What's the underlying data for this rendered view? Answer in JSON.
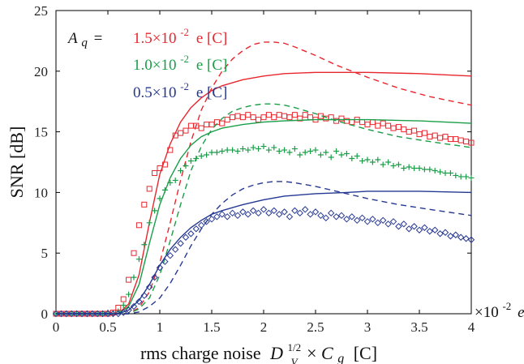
{
  "chart_data": {
    "type": "line",
    "xlabel": "rms charge noise",
    "xlabel_sym": "D",
    "xlabel_sub": "V",
    "xlabel_sup": "1/2",
    "xlabel_times": "×",
    "xlabel_c": "C",
    "xlabel_g": "g",
    "xlabel_unit": "[C]",
    "ylabel": "SNR [dB]",
    "x_unit_prefix": "×10",
    "x_unit_exp": "-2",
    "x_unit_suffix": "e",
    "xlim": [
      0,
      4
    ],
    "ylim": [
      0,
      25
    ],
    "xticks": [
      "0",
      "0.5",
      "1",
      "1.5",
      "2",
      "2.5",
      "3",
      "3.5",
      "4"
    ],
    "yticks": [
      "0",
      "5",
      "10",
      "15",
      "20",
      "25"
    ],
    "legend": {
      "prefix": "A",
      "prefix_sub": "q",
      "equals": "=",
      "entries": [
        {
          "value": "1.5×10",
          "exp": "-2",
          "unit": "e [C]",
          "color": "#e8262d"
        },
        {
          "value": "1.0×10",
          "exp": "-2",
          "unit": "e [C]",
          "color": "#1a9e48"
        },
        {
          "value": "0.5×10",
          "exp": "-2",
          "unit": "e [C]",
          "color": "#253892"
        }
      ]
    },
    "series": [
      {
        "color": "#e8262d",
        "marker": "square",
        "solid": {
          "x": [
            0,
            0.6,
            0.7,
            0.8,
            0.9,
            1.0,
            1.1,
            1.2,
            1.3,
            1.4,
            1.5,
            1.6,
            1.8,
            2.0,
            2.2,
            2.5,
            2.8,
            3.0,
            3.5,
            4.0
          ],
          "y": [
            0,
            0,
            0.8,
            3.2,
            7.5,
            11.5,
            14.0,
            15.8,
            17.0,
            17.8,
            18.4,
            18.8,
            19.3,
            19.6,
            19.8,
            19.9,
            19.9,
            19.9,
            19.8,
            19.6
          ]
        },
        "dashed": {
          "x": [
            0,
            0.7,
            0.8,
            0.9,
            1.0,
            1.1,
            1.2,
            1.3,
            1.4,
            1.5,
            1.6,
            1.7,
            1.8,
            1.9,
            2.0,
            2.1,
            2.2,
            2.3,
            2.5,
            2.7,
            3.0,
            3.3,
            3.6,
            4.0
          ],
          "y": [
            0,
            0,
            0.5,
            1.8,
            4.2,
            7.5,
            11.0,
            14.2,
            16.8,
            18.6,
            20.0,
            21.0,
            21.7,
            22.2,
            22.4,
            22.4,
            22.3,
            22.0,
            21.3,
            20.5,
            19.5,
            18.6,
            17.9,
            17.2
          ]
        },
        "markers": {
          "x": [
            0,
            0.05,
            0.1,
            0.15,
            0.2,
            0.25,
            0.3,
            0.35,
            0.4,
            0.45,
            0.5,
            0.55,
            0.6,
            0.65,
            0.7,
            0.75,
            0.8,
            0.85,
            0.9,
            0.95,
            1.0,
            1.05,
            1.1,
            1.15,
            1.2,
            1.25,
            1.3,
            1.35,
            1.4,
            1.45,
            1.5,
            1.55,
            1.6,
            1.65,
            1.7,
            1.75,
            1.8,
            1.85,
            1.9,
            1.95,
            2.0,
            2.05,
            2.1,
            2.15,
            2.2,
            2.25,
            2.3,
            2.35,
            2.4,
            2.45,
            2.5,
            2.55,
            2.6,
            2.65,
            2.7,
            2.75,
            2.8,
            2.85,
            2.9,
            2.95,
            3.0,
            3.05,
            3.1,
            3.15,
            3.2,
            3.25,
            3.3,
            3.35,
            3.4,
            3.45,
            3.5,
            3.55,
            3.6,
            3.65,
            3.7,
            3.75,
            3.8,
            3.85,
            3.9,
            3.95,
            4.0
          ],
          "y": [
            0,
            0,
            0,
            0,
            0,
            0,
            0,
            0,
            0,
            0,
            0,
            0.1,
            0.5,
            1.2,
            2.8,
            5.0,
            7.3,
            9.0,
            10.3,
            11.6,
            12.0,
            12.3,
            13.5,
            14.7,
            14.9,
            15.1,
            15.5,
            15.5,
            15.3,
            15.6,
            15.6,
            15.8,
            15.7,
            16.0,
            16.2,
            16.3,
            16.2,
            16.4,
            16.2,
            16.0,
            16.2,
            16.4,
            16.2,
            16.4,
            16.3,
            16.2,
            16.4,
            16.1,
            16.4,
            16.2,
            16.0,
            16.3,
            16.1,
            16.2,
            15.9,
            16.1,
            15.9,
            15.8,
            16.0,
            15.8,
            15.6,
            15.8,
            15.5,
            15.7,
            15.5,
            15.3,
            15.4,
            15.2,
            15.0,
            15.1,
            14.8,
            14.9,
            14.6,
            14.7,
            14.5,
            14.6,
            14.4,
            14.4,
            14.3,
            14.2,
            14.1
          ]
        }
      },
      {
        "color": "#1a9e48",
        "marker": "plus",
        "solid": {
          "x": [
            0,
            0.6,
            0.7,
            0.8,
            0.9,
            1.0,
            1.1,
            1.2,
            1.3,
            1.4,
            1.5,
            1.6,
            1.8,
            2.0,
            2.2,
            2.5,
            2.8,
            3.0,
            3.5,
            4.0
          ],
          "y": [
            0,
            0,
            0.6,
            2.4,
            5.8,
            9.0,
            11.2,
            12.8,
            13.9,
            14.6,
            15.0,
            15.3,
            15.6,
            15.8,
            15.9,
            16.0,
            16.0,
            16.0,
            15.9,
            15.7
          ]
        },
        "dashed": {
          "x": [
            0,
            0.7,
            0.8,
            0.9,
            1.0,
            1.1,
            1.2,
            1.3,
            1.4,
            1.5,
            1.6,
            1.7,
            1.8,
            1.9,
            2.0,
            2.1,
            2.2,
            2.3,
            2.5,
            2.7,
            3.0,
            3.3,
            3.6,
            4.0
          ],
          "y": [
            0,
            0,
            0.4,
            1.3,
            3.2,
            6.0,
            9.0,
            11.8,
            13.8,
            15.2,
            16.1,
            16.7,
            17.0,
            17.2,
            17.3,
            17.3,
            17.2,
            17.0,
            16.5,
            15.9,
            15.2,
            14.6,
            14.2,
            13.7
          ]
        },
        "markers": {
          "x": [
            0,
            0.05,
            0.1,
            0.15,
            0.2,
            0.25,
            0.3,
            0.35,
            0.4,
            0.45,
            0.5,
            0.55,
            0.6,
            0.65,
            0.7,
            0.75,
            0.8,
            0.85,
            0.9,
            0.95,
            1.0,
            1.05,
            1.1,
            1.15,
            1.2,
            1.25,
            1.3,
            1.35,
            1.4,
            1.45,
            1.5,
            1.55,
            1.6,
            1.65,
            1.7,
            1.75,
            1.8,
            1.85,
            1.9,
            1.95,
            2.0,
            2.05,
            2.1,
            2.15,
            2.2,
            2.25,
            2.3,
            2.35,
            2.4,
            2.45,
            2.5,
            2.55,
            2.6,
            2.65,
            2.7,
            2.75,
            2.8,
            2.85,
            2.9,
            2.95,
            3.0,
            3.05,
            3.1,
            3.15,
            3.2,
            3.25,
            3.3,
            3.35,
            3.4,
            3.45,
            3.5,
            3.55,
            3.6,
            3.65,
            3.7,
            3.75,
            3.8,
            3.85,
            3.9,
            3.95,
            4.0
          ],
          "y": [
            0,
            0,
            0,
            0,
            0,
            0,
            0,
            0,
            0,
            0,
            0,
            0,
            0.2,
            0.7,
            1.6,
            3.0,
            4.5,
            5.7,
            7.5,
            8.5,
            9.5,
            10.2,
            10.8,
            11.0,
            11.8,
            12.2,
            12.6,
            12.8,
            13.0,
            13.1,
            13.3,
            13.3,
            13.4,
            13.5,
            13.5,
            13.4,
            13.6,
            13.5,
            13.7,
            13.6,
            13.8,
            13.5,
            13.7,
            13.4,
            13.5,
            13.3,
            13.6,
            13.1,
            13.3,
            13.4,
            13.5,
            13.1,
            13.3,
            12.9,
            13.4,
            13.1,
            13.2,
            12.8,
            13.0,
            12.6,
            12.7,
            12.5,
            12.7,
            12.3,
            12.5,
            12.2,
            12.3,
            12.0,
            12.1,
            12.0,
            12.0,
            11.9,
            11.9,
            11.8,
            11.7,
            11.6,
            11.6,
            11.4,
            11.3,
            11.3,
            11.2
          ]
        }
      },
      {
        "color": "#253892",
        "marker": "diamond",
        "solid": {
          "x": [
            0,
            0.6,
            0.7,
            0.8,
            0.9,
            1.0,
            1.1,
            1.2,
            1.3,
            1.4,
            1.5,
            1.6,
            1.8,
            2.0,
            2.2,
            2.5,
            2.8,
            3.0,
            3.5,
            4.0
          ],
          "y": [
            0,
            0,
            0.3,
            1.1,
            2.4,
            4.0,
            5.3,
            6.3,
            7.1,
            7.7,
            8.2,
            8.5,
            9.0,
            9.4,
            9.7,
            9.9,
            10.0,
            10.1,
            10.1,
            10.0
          ]
        },
        "dashed": {
          "x": [
            0,
            0.7,
            0.8,
            0.9,
            1.0,
            1.1,
            1.2,
            1.3,
            1.4,
            1.5,
            1.6,
            1.7,
            1.8,
            1.9,
            2.0,
            2.1,
            2.2,
            2.3,
            2.5,
            2.7,
            3.0,
            3.3,
            3.6,
            4.0
          ],
          "y": [
            0,
            0,
            0.15,
            0.6,
            1.3,
            2.5,
            4.0,
            5.6,
            7.0,
            8.2,
            9.1,
            9.8,
            10.3,
            10.6,
            10.8,
            10.9,
            10.9,
            10.8,
            10.5,
            10.1,
            9.5,
            9.0,
            8.6,
            8.1
          ]
        },
        "markers": {
          "x": [
            0,
            0.05,
            0.1,
            0.15,
            0.2,
            0.25,
            0.3,
            0.35,
            0.4,
            0.45,
            0.5,
            0.55,
            0.6,
            0.65,
            0.7,
            0.75,
            0.8,
            0.85,
            0.9,
            0.95,
            1.0,
            1.05,
            1.1,
            1.15,
            1.2,
            1.25,
            1.3,
            1.35,
            1.4,
            1.45,
            1.5,
            1.55,
            1.6,
            1.65,
            1.7,
            1.75,
            1.8,
            1.85,
            1.9,
            1.95,
            2.0,
            2.05,
            2.1,
            2.15,
            2.2,
            2.25,
            2.3,
            2.35,
            2.4,
            2.45,
            2.5,
            2.55,
            2.6,
            2.65,
            2.7,
            2.75,
            2.8,
            2.85,
            2.9,
            2.95,
            3.0,
            3.05,
            3.1,
            3.15,
            3.2,
            3.25,
            3.3,
            3.35,
            3.4,
            3.45,
            3.5,
            3.55,
            3.6,
            3.65,
            3.7,
            3.75,
            3.8,
            3.85,
            3.9,
            3.95,
            4.0
          ],
          "y": [
            0,
            0,
            0,
            0,
            0,
            0,
            0,
            0,
            0,
            0,
            0,
            0,
            0,
            0.1,
            0.3,
            0.6,
            1.0,
            1.5,
            2.2,
            3.0,
            3.8,
            4.3,
            4.8,
            5.3,
            5.8,
            6.3,
            6.6,
            7.0,
            7.3,
            7.6,
            7.8,
            8.0,
            8.2,
            8.0,
            8.3,
            8.1,
            8.4,
            8.2,
            8.5,
            8.3,
            8.6,
            8.3,
            8.5,
            8.2,
            8.4,
            8.0,
            8.5,
            8.3,
            8.6,
            8.2,
            8.4,
            8.1,
            7.9,
            8.3,
            8.0,
            8.1,
            7.8,
            8.0,
            7.7,
            7.9,
            7.6,
            7.8,
            7.5,
            7.7,
            7.4,
            7.6,
            7.2,
            7.4,
            7.0,
            7.2,
            6.9,
            7.1,
            6.8,
            6.9,
            6.6,
            6.7,
            6.4,
            6.5,
            6.3,
            6.2,
            6.1
          ]
        }
      }
    ]
  }
}
